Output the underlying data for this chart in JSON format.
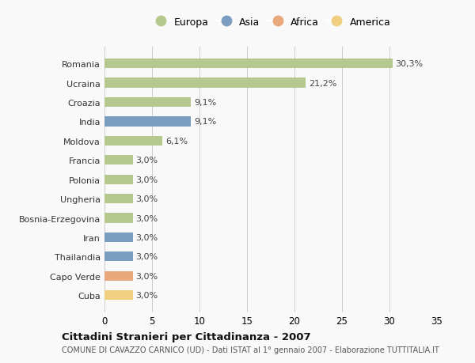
{
  "categories": [
    "Romania",
    "Ucraina",
    "Croazia",
    "India",
    "Moldova",
    "Francia",
    "Polonia",
    "Ungheria",
    "Bosnia-Erzegovina",
    "Iran",
    "Thailandia",
    "Capo Verde",
    "Cuba"
  ],
  "values": [
    30.3,
    21.2,
    9.1,
    9.1,
    6.1,
    3.0,
    3.0,
    3.0,
    3.0,
    3.0,
    3.0,
    3.0,
    3.0
  ],
  "labels": [
    "30,3%",
    "21,2%",
    "9,1%",
    "9,1%",
    "6,1%",
    "3,0%",
    "3,0%",
    "3,0%",
    "3,0%",
    "3,0%",
    "3,0%",
    "3,0%",
    "3,0%"
  ],
  "continents": [
    "Europa",
    "Europa",
    "Europa",
    "Asia",
    "Europa",
    "Europa",
    "Europa",
    "Europa",
    "Europa",
    "Asia",
    "Asia",
    "Africa",
    "America"
  ],
  "colors": {
    "Europa": "#b5c98e",
    "Asia": "#7b9ec0",
    "Africa": "#e8a87c",
    "America": "#f0d080"
  },
  "legend_order": [
    "Europa",
    "Asia",
    "Africa",
    "America"
  ],
  "xlim": [
    0,
    35
  ],
  "xticks": [
    0,
    5,
    10,
    15,
    20,
    25,
    30,
    35
  ],
  "title": "Cittadini Stranieri per Cittadinanza - 2007",
  "subtitle": "COMUNE DI CAVAZZO CARNICO (UD) - Dati ISTAT al 1° gennaio 2007 - Elaborazione TUTTITALIA.IT",
  "bg_color": "#f9f9f9",
  "grid_color": "#cccccc"
}
